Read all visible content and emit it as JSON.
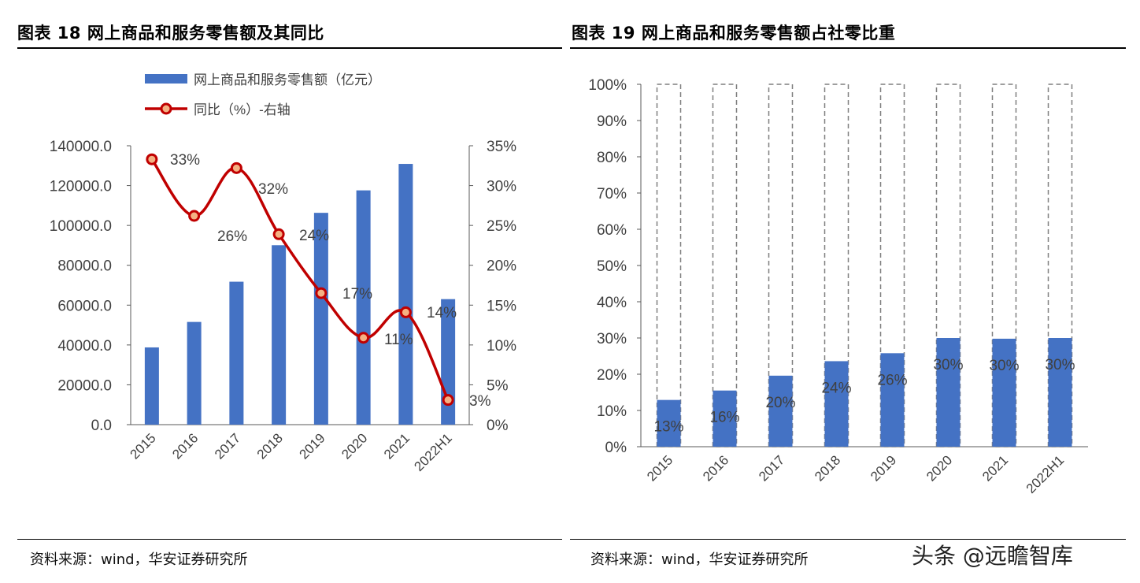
{
  "left_panel": {
    "title": "图表 18  网上商品和服务零售额及其同比",
    "source": "资料来源：wind，华安证券研究所"
  },
  "right_panel": {
    "title": "图表 19  网上商品和服务零售额占社零比重",
    "source": "资料来源：wind，华安证券研究所"
  },
  "watermark": "头条 @远瞻智库",
  "colors": {
    "bar": "#4472C4",
    "line": "#C00000",
    "marker_fill": "#F4B183",
    "dashed": "#7F7F7F",
    "axis": "#595959"
  },
  "chart_data": [
    {
      "type": "bar",
      "categories": [
        "2015",
        "2016",
        "2017",
        "2018",
        "2019",
        "2020",
        "2021",
        "2022H1"
      ],
      "series": [
        {
          "name": "网上商品和服务零售额（亿元）",
          "type": "bar",
          "axis": "left",
          "values": [
            38773,
            51556,
            71751,
            90065,
            106324,
            117601,
            130884,
            63007
          ]
        },
        {
          "name": "同比（%）-右轴",
          "type": "line",
          "axis": "right",
          "values": [
            33.3,
            26.2,
            32.2,
            23.9,
            16.5,
            10.9,
            14.1,
            3.1
          ],
          "labels": [
            "33%",
            "26%",
            "32%",
            "24%",
            "17%",
            "11%",
            "14%",
            "3%"
          ]
        }
      ],
      "yticks_left": [
        "0.0",
        "20000.0",
        "40000.0",
        "60000.0",
        "80000.0",
        "100000.0",
        "120000.0",
        "140000.0"
      ],
      "yticks_right": [
        "0%",
        "5%",
        "10%",
        "15%",
        "20%",
        "25%",
        "30%",
        "35%"
      ],
      "ylim_left": [
        0,
        140000
      ],
      "ylim_right": [
        0,
        35
      ],
      "legend_position": "top-left"
    },
    {
      "type": "bar",
      "categories": [
        "2015",
        "2016",
        "2017",
        "2018",
        "2019",
        "2020",
        "2021",
        "2022H1"
      ],
      "series": [
        {
          "values": [
            12.9,
            15.5,
            19.6,
            23.6,
            25.8,
            30.0,
            29.8,
            30.0
          ],
          "labels": [
            "13%",
            "16%",
            "20%",
            "24%",
            "26%",
            "30%",
            "30%",
            "30%"
          ]
        }
      ],
      "total_outline": 100,
      "yticks": [
        "0%",
        "10%",
        "20%",
        "30%",
        "40%",
        "50%",
        "60%",
        "70%",
        "80%",
        "90%",
        "100%"
      ],
      "ylim": [
        0,
        100
      ]
    }
  ]
}
